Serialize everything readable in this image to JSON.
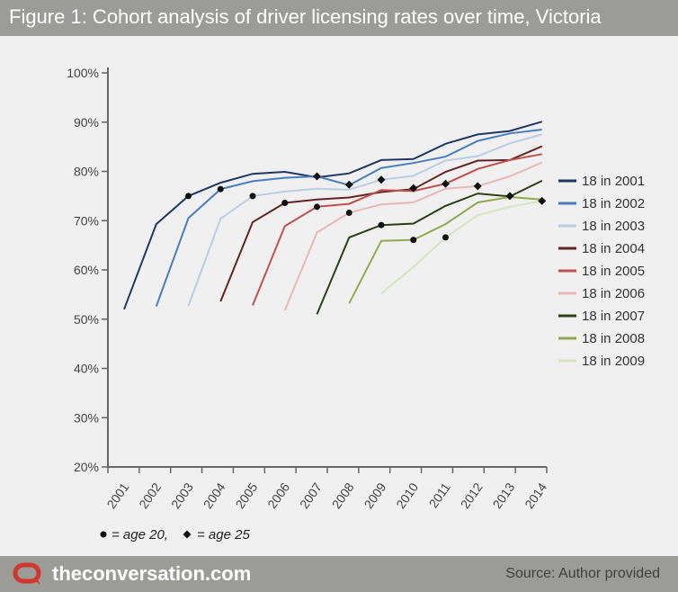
{
  "header": {
    "title": "Figure 1: Cohort analysis of driver licensing rates over time, Victoria"
  },
  "footer": {
    "brand": "theconversation.com",
    "source": "Source: Author provided"
  },
  "colors": {
    "header_bg": "#9b9b98",
    "panel_bg": "#f0f0f0",
    "logo": "#d1372c"
  },
  "chart_data": {
    "type": "line",
    "title": "Figure 1: Cohort analysis of driver licensing rates over time, Victoria",
    "xlabel": "",
    "ylabel": "",
    "x_categories": [
      "2001",
      "2002",
      "2003",
      "2004",
      "2005",
      "2006",
      "2007",
      "2008",
      "2009",
      "2010",
      "2011",
      "2012",
      "2013",
      "2014"
    ],
    "y_ticks": [
      "20%",
      "30%",
      "40%",
      "50%",
      "60%",
      "70%",
      "80%",
      "90%",
      "100%"
    ],
    "ylim": [
      20,
      100
    ],
    "grid": false,
    "legend_position": "right",
    "series": [
      {
        "name": "18 in 2001",
        "color": "#1f3864",
        "points": [
          [
            2001,
            52
          ],
          [
            2002,
            69.3
          ],
          [
            2003,
            75
          ],
          [
            2004,
            77.7
          ],
          [
            2005,
            79.5
          ],
          [
            2006,
            79.9
          ],
          [
            2007,
            78.8
          ],
          [
            2008,
            79.6
          ],
          [
            2009,
            82.3
          ],
          [
            2010,
            82.5
          ],
          [
            2011,
            85.6
          ],
          [
            2012,
            87.5
          ],
          [
            2013,
            88.2
          ],
          [
            2014,
            90.1
          ]
        ]
      },
      {
        "name": "18 in 2002",
        "color": "#4a7ebb",
        "points": [
          [
            2002,
            52.6
          ],
          [
            2003,
            70.5
          ],
          [
            2004,
            76.4
          ],
          [
            2005,
            78
          ],
          [
            2006,
            78.7
          ],
          [
            2007,
            79
          ],
          [
            2008,
            77.2
          ],
          [
            2009,
            80.7
          ],
          [
            2010,
            81.7
          ],
          [
            2011,
            83
          ],
          [
            2012,
            86.2
          ],
          [
            2013,
            87.7
          ],
          [
            2014,
            88.5
          ]
        ]
      },
      {
        "name": "18 in 2003",
        "color": "#b9cde5",
        "points": [
          [
            2003,
            52.7
          ],
          [
            2004,
            70.4
          ],
          [
            2005,
            75
          ],
          [
            2006,
            75.9
          ],
          [
            2007,
            76.5
          ],
          [
            2008,
            76.3
          ],
          [
            2009,
            78.3
          ],
          [
            2010,
            79.1
          ],
          [
            2011,
            82.2
          ],
          [
            2012,
            83.1
          ],
          [
            2013,
            85.7
          ],
          [
            2014,
            87.5
          ]
        ]
      },
      {
        "name": "18 in 2004",
        "color": "#632523",
        "points": [
          [
            2004,
            53.6
          ],
          [
            2005,
            69.7
          ],
          [
            2006,
            73.6
          ],
          [
            2007,
            74.3
          ],
          [
            2008,
            74.7
          ],
          [
            2009,
            75.8
          ],
          [
            2010,
            76.4
          ],
          [
            2011,
            79.9
          ],
          [
            2012,
            82.2
          ],
          [
            2013,
            82.3
          ],
          [
            2014,
            85.1
          ]
        ]
      },
      {
        "name": "18 in 2005",
        "color": "#c0504d",
        "points": [
          [
            2005,
            52.8
          ],
          [
            2006,
            68.9
          ],
          [
            2007,
            72.8
          ],
          [
            2008,
            73.4
          ],
          [
            2009,
            76.2
          ],
          [
            2010,
            76
          ],
          [
            2011,
            77.5
          ],
          [
            2012,
            80.5
          ],
          [
            2013,
            82.3
          ],
          [
            2014,
            83.5
          ]
        ]
      },
      {
        "name": "18 in 2006",
        "color": "#e6b9b8",
        "points": [
          [
            2006,
            51.8
          ],
          [
            2007,
            67.6
          ],
          [
            2008,
            71.6
          ],
          [
            2009,
            73.3
          ],
          [
            2010,
            73.7
          ],
          [
            2011,
            76.5
          ],
          [
            2012,
            77
          ],
          [
            2013,
            79
          ],
          [
            2014,
            81.8
          ]
        ]
      },
      {
        "name": "18 in 2007",
        "color": "#2d3e12",
        "points": [
          [
            2007,
            51
          ],
          [
            2008,
            66.6
          ],
          [
            2009,
            69.1
          ],
          [
            2010,
            69.4
          ],
          [
            2011,
            73
          ],
          [
            2012,
            75.5
          ],
          [
            2013,
            74.9
          ],
          [
            2014,
            78.1
          ]
        ]
      },
      {
        "name": "18 in 2008",
        "color": "#8faa50",
        "points": [
          [
            2008,
            53.2
          ],
          [
            2009,
            65.9
          ],
          [
            2010,
            66.1
          ],
          [
            2011,
            69.3
          ],
          [
            2012,
            73.7
          ],
          [
            2013,
            74.8
          ],
          [
            2014,
            74.3
          ]
        ]
      },
      {
        "name": "18 in 2009",
        "color": "#d7e4bd",
        "points": [
          [
            2009,
            55.2
          ],
          [
            2010,
            60.6
          ],
          [
            2011,
            66.6
          ],
          [
            2012,
            71.1
          ],
          [
            2013,
            72.8
          ],
          [
            2014,
            74
          ]
        ]
      }
    ],
    "markers": {
      "age20": [
        [
          2003,
          75
        ],
        [
          2004,
          76.4
        ],
        [
          2005,
          75
        ],
        [
          2006,
          73.6
        ],
        [
          2007,
          72.8
        ],
        [
          2008,
          71.6
        ],
        [
          2009,
          69.1
        ],
        [
          2010,
          66.1
        ],
        [
          2011,
          66.6
        ]
      ],
      "age25": [
        [
          2007,
          79
        ],
        [
          2008,
          77.3
        ],
        [
          2009,
          78.3
        ],
        [
          2010,
          76.6
        ],
        [
          2011,
          77.5
        ],
        [
          2012,
          77
        ],
        [
          2013,
          75
        ],
        [
          2014,
          74
        ]
      ]
    },
    "annotation": {
      "circle_label": "= age 20,",
      "diamond_label": "= age 25"
    }
  }
}
